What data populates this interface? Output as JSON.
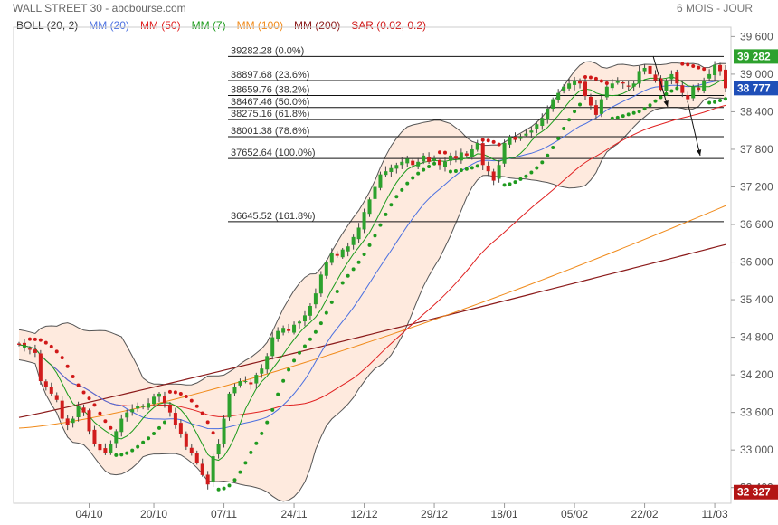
{
  "header": {
    "title": "WALL STREET 30 - abcbourse.com",
    "period": "6 MOIS - JOUR"
  },
  "legend": [
    {
      "label": "BOLL (20, 2)",
      "color": "#333333"
    },
    {
      "label": "MM (20)",
      "color": "#4a6fe0"
    },
    {
      "label": "MM (50)",
      "color": "#e02020"
    },
    {
      "label": "MM (7)",
      "color": "#1a9a1a"
    },
    {
      "label": "MM (100)",
      "color": "#f08a1a"
    },
    {
      "label": "MM (200)",
      "color": "#8b1a1a"
    },
    {
      "label": "SAR (0.02, 0.2)",
      "color": "#d01818"
    }
  ],
  "chart_data": {
    "type": "candlestick",
    "instrument": "WALL STREET 30",
    "yticks": [
      32400,
      33000,
      33600,
      34200,
      34800,
      35400,
      36000,
      36600,
      37200,
      37800,
      38400,
      39000,
      39600
    ],
    "ylabels": [
      "32 400",
      "33 000",
      "33 600",
      "34 200",
      "34 800",
      "35 400",
      "36 000",
      "36 600",
      "37 200",
      "37 800",
      "38 400",
      "39 000",
      "39 600"
    ],
    "ylim": [
      32150,
      39750
    ],
    "xticks": [
      {
        "label": "04/10",
        "index": 13
      },
      {
        "label": "20/10",
        "index": 25
      },
      {
        "label": "07/11",
        "index": 38
      },
      {
        "label": "24/11",
        "index": 51
      },
      {
        "label": "12/12",
        "index": 64
      },
      {
        "label": "29/12",
        "index": 77
      },
      {
        "label": "18/01",
        "index": 90
      },
      {
        "label": "05/02",
        "index": 103
      },
      {
        "label": "22/02",
        "index": 116
      },
      {
        "label": "11/03",
        "index": 129
      }
    ],
    "close": [
      34680,
      34650,
      34600,
      34550,
      34100,
      34000,
      33900,
      33800,
      33500,
      33400,
      33500,
      33700,
      33600,
      33300,
      33100,
      33000,
      32950,
      33100,
      33300,
      33500,
      33600,
      33650,
      33700,
      33700,
      33750,
      33850,
      33900,
      33750,
      33600,
      33400,
      33250,
      33050,
      32950,
      32800,
      32600,
      32450,
      32900,
      33100,
      33500,
      33900,
      34000,
      34100,
      34100,
      34050,
      34200,
      34300,
      34500,
      34800,
      34900,
      34950,
      34900,
      35000,
      35050,
      35150,
      35300,
      35500,
      35800,
      36000,
      36150,
      36100,
      36200,
      36250,
      36400,
      36550,
      36800,
      37000,
      37200,
      37400,
      37450,
      37500,
      37550,
      37600,
      37650,
      37550,
      37600,
      37700,
      37600,
      37650,
      37550,
      37600,
      37700,
      37650,
      37750,
      37700,
      37800,
      37900,
      37550,
      37450,
      37300,
      37550,
      37900,
      38000,
      37950,
      38000,
      38050,
      38100,
      38200,
      38300,
      38450,
      38600,
      38700,
      38800,
      38850,
      38900,
      38850,
      38650,
      38500,
      38350,
      38600,
      38800,
      38850,
      38900,
      38850,
      38800,
      38850,
      39050,
      39100,
      39000,
      38900,
      38750,
      38900,
      39000,
      38850,
      38700,
      38600,
      38800,
      38750,
      38900,
      39000,
      39150,
      39050,
      38777
    ],
    "indicators": {
      "bollinger_upper_last": 39250,
      "bollinger_lower_last": 38450,
      "mm20_last": 38780,
      "mm50_last": 38470,
      "mm7_last": 38850,
      "mm100_last": 36900,
      "mm200_last": 36280,
      "sar_last": 38420
    },
    "fibonacci": [
      {
        "label": "39282.28  (0.0%)",
        "value": 39282.28
      },
      {
        "label": "38897.68  (23.6%)",
        "value": 38897.68
      },
      {
        "label": "38659.76  (38.2%)",
        "value": 38659.76
      },
      {
        "label": "38467.46  (50.0%)",
        "value": 38467.46
      },
      {
        "label": "38275.16  (61.8%)",
        "value": 38275.16
      },
      {
        "label": "38001.38  (78.6%)",
        "value": 38001.38
      },
      {
        "label": "37652.64  (100.0%)",
        "value": 37652.64
      },
      {
        "label": "36645.52  (161.8%)",
        "value": 36645.52
      }
    ],
    "badges": [
      {
        "label": "39 282",
        "value": 39282,
        "color": "#2da12d"
      },
      {
        "label": "38 777",
        "value": 38777,
        "color": "#1f4fb8"
      },
      {
        "label": "32 327",
        "value": 32327,
        "color": "#b31515"
      }
    ]
  }
}
